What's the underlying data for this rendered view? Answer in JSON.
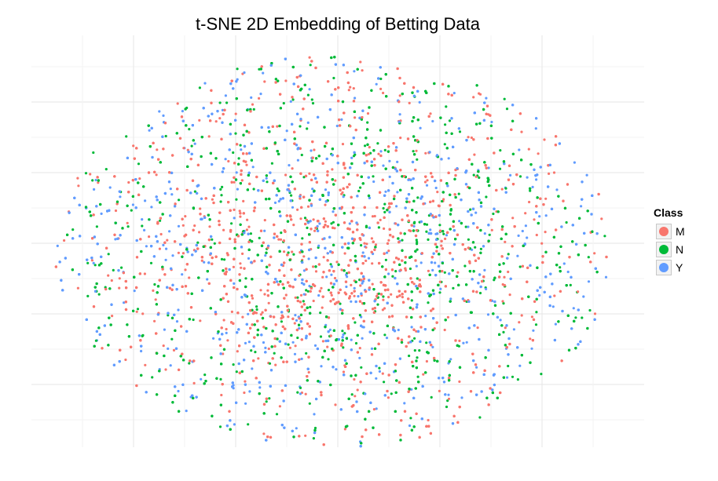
{
  "chart_data": {
    "type": "scatter",
    "title": "t-SNE 2D Embedding of Betting Data",
    "xlabel": "",
    "ylabel": "",
    "grid": true,
    "axis_ticks_shown": false,
    "legend": {
      "title": "Class",
      "position": "right",
      "entries": [
        {
          "label": "M",
          "color": "#F8766D"
        },
        {
          "label": "N",
          "color": "#00BA38"
        },
        {
          "label": "Y",
          "color": "#619CFF"
        }
      ]
    },
    "series": [
      {
        "name": "M",
        "color": "#F8766D"
      },
      {
        "name": "N",
        "color": "#00BA38"
      },
      {
        "name": "Y",
        "color": "#619CFF"
      }
    ],
    "distribution": "dense elliptical cloud of overlapping points from all three classes, with denser red cluster near the center-left"
  }
}
